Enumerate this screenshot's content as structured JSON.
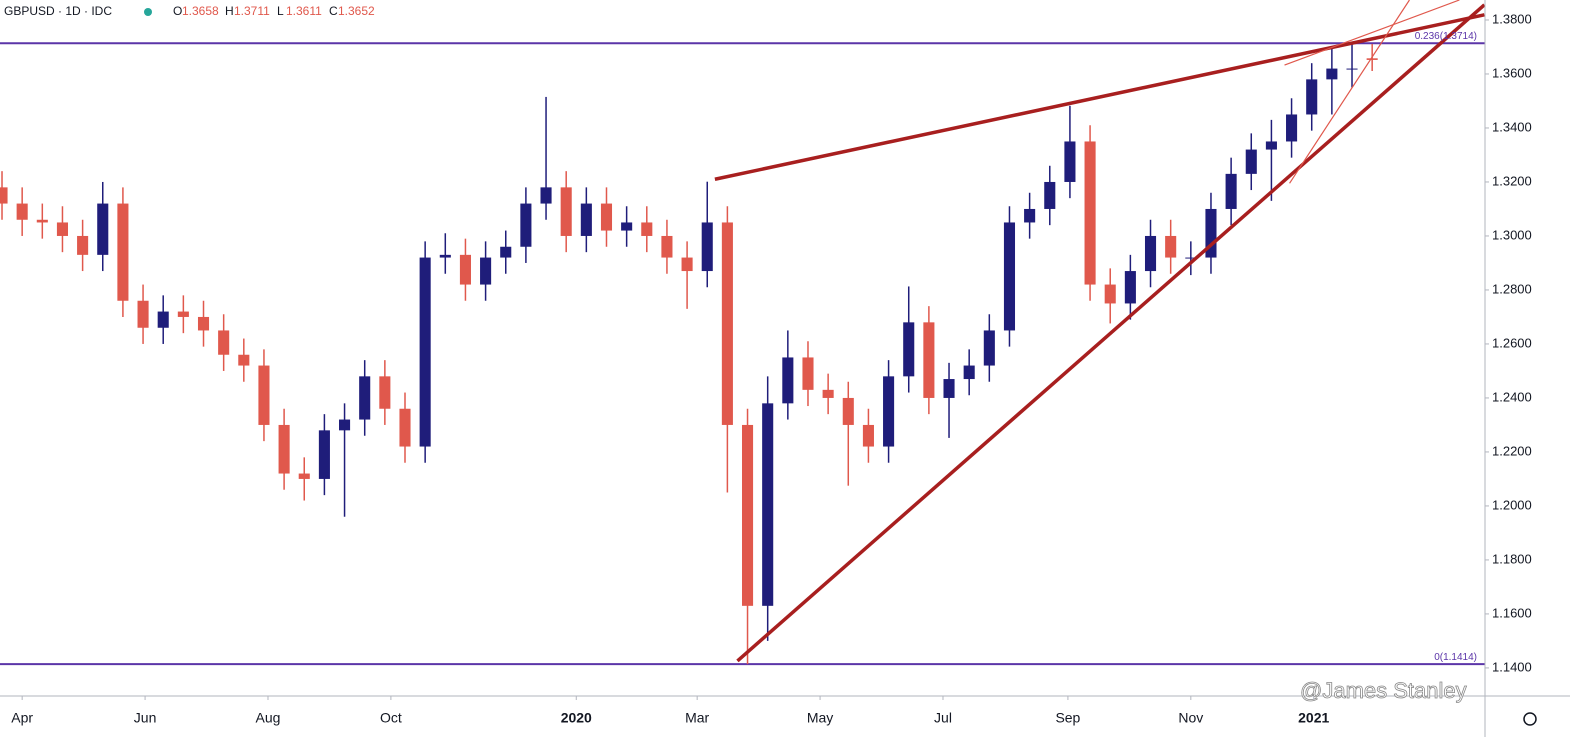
{
  "chart_data": {
    "type": "candlestick",
    "symbol": "GBPUSD · 1D · IDC",
    "ohlc_prefixes": [
      "O",
      "H",
      "L",
      "C"
    ],
    "up_color": "#1f1d7a",
    "down_color": "#e0584c",
    "x": [
      -10,
      0,
      10,
      20,
      30,
      40,
      50,
      60,
      70,
      80,
      90,
      100,
      110,
      120,
      130,
      140,
      150,
      160,
      170,
      180,
      190,
      200,
      210,
      220,
      230,
      240,
      250,
      260,
      270,
      280,
      290,
      300,
      310,
      320,
      330,
      340,
      350,
      360,
      370,
      380,
      390,
      400,
      410,
      420,
      430,
      440,
      450,
      460,
      470,
      480,
      490,
      500,
      510,
      520,
      530,
      540,
      550,
      560,
      570,
      580,
      590,
      600,
      610,
      620,
      630,
      640,
      650,
      660,
      670
    ],
    "open": [
      1.318,
      1.312,
      1.306,
      1.305,
      1.3,
      1.293,
      1.312,
      1.276,
      1.266,
      1.272,
      1.27,
      1.265,
      1.256,
      1.252,
      1.23,
      1.212,
      1.21,
      1.228,
      1.232,
      1.248,
      1.236,
      1.222,
      1.292,
      1.293,
      1.282,
      1.292,
      1.296,
      1.312,
      1.318,
      1.3,
      1.312,
      1.302,
      1.305,
      1.3,
      1.292,
      1.287,
      1.305,
      1.23,
      1.163,
      1.238,
      1.255,
      1.243,
      1.24,
      1.23,
      1.222,
      1.248,
      1.268,
      1.24,
      1.247,
      1.252,
      1.265,
      1.305,
      1.31,
      1.32,
      1.335,
      1.282,
      1.275,
      1.287,
      1.3,
      1.292,
      1.292,
      1.31,
      1.323,
      1.332,
      1.335,
      1.345,
      1.358,
      1.362,
      1.3658
    ],
    "high": [
      1.324,
      1.318,
      1.312,
      1.311,
      1.306,
      1.32,
      1.318,
      1.282,
      1.278,
      1.278,
      1.276,
      1.271,
      1.262,
      1.258,
      1.236,
      1.218,
      1.234,
      1.238,
      1.254,
      1.254,
      1.242,
      1.298,
      1.301,
      1.299,
      1.298,
      1.302,
      1.318,
      1.3515,
      1.324,
      1.318,
      1.318,
      1.311,
      1.311,
      1.306,
      1.298,
      1.3201,
      1.311,
      1.236,
      1.248,
      1.265,
      1.261,
      1.249,
      1.246,
      1.236,
      1.254,
      1.2813,
      1.274,
      1.253,
      1.258,
      1.271,
      1.311,
      1.316,
      1.326,
      1.3482,
      1.341,
      1.288,
      1.293,
      1.306,
      1.306,
      1.298,
      1.316,
      1.329,
      1.338,
      1.343,
      1.351,
      1.364,
      1.37,
      1.372,
      1.3711
    ],
    "low": [
      1.306,
      1.3,
      1.299,
      1.294,
      1.287,
      1.287,
      1.27,
      1.26,
      1.26,
      1.264,
      1.259,
      1.25,
      1.246,
      1.224,
      1.206,
      1.202,
      1.204,
      1.196,
      1.226,
      1.23,
      1.216,
      1.216,
      1.286,
      1.276,
      1.276,
      1.286,
      1.29,
      1.306,
      1.294,
      1.294,
      1.296,
      1.296,
      1.294,
      1.286,
      1.273,
      1.281,
      1.205,
      1.1414,
      1.15,
      1.232,
      1.237,
      1.234,
      1.2075,
      1.216,
      1.216,
      1.242,
      1.234,
      1.2252,
      1.241,
      1.246,
      1.259,
      1.299,
      1.304,
      1.314,
      1.276,
      1.2676,
      1.269,
      1.281,
      1.286,
      1.2855,
      1.286,
      1.304,
      1.317,
      1.313,
      1.329,
      1.339,
      1.345,
      1.355,
      1.3611
    ],
    "close": [
      1.312,
      1.306,
      1.305,
      1.3,
      1.293,
      1.312,
      1.276,
      1.266,
      1.272,
      1.27,
      1.265,
      1.256,
      1.252,
      1.23,
      1.212,
      1.21,
      1.228,
      1.232,
      1.248,
      1.236,
      1.222,
      1.292,
      1.293,
      1.282,
      1.292,
      1.296,
      1.312,
      1.318,
      1.3,
      1.312,
      1.302,
      1.305,
      1.3,
      1.292,
      1.287,
      1.305,
      1.23,
      1.163,
      1.238,
      1.255,
      1.243,
      1.24,
      1.23,
      1.222,
      1.248,
      1.268,
      1.24,
      1.247,
      1.252,
      1.265,
      1.305,
      1.31,
      1.32,
      1.335,
      1.282,
      1.275,
      1.287,
      1.3,
      1.292,
      1.292,
      1.31,
      1.323,
      1.332,
      1.335,
      1.345,
      1.358,
      1.362,
      1.362,
      1.3652
    ],
    "xlim": [
      -11,
      726
    ],
    "xticks": [
      {
        "value": 0,
        "label": "Apr"
      },
      {
        "value": 61,
        "label": "Jun"
      },
      {
        "value": 122,
        "label": "Aug"
      },
      {
        "value": 183,
        "label": "Oct"
      },
      {
        "value": 275,
        "label": "2020"
      },
      {
        "value": 335,
        "label": "Mar"
      },
      {
        "value": 396,
        "label": "May"
      },
      {
        "value": 457,
        "label": "Jul"
      },
      {
        "value": 519,
        "label": "Sep"
      },
      {
        "value": 580,
        "label": "Nov"
      },
      {
        "value": 641,
        "label": "2021"
      }
    ],
    "ylim": [
      1.1296,
      1.3874
    ],
    "yticks": [
      {
        "value": 1.14,
        "label": "1.1400"
      },
      {
        "value": 1.16,
        "label": "1.1600"
      },
      {
        "value": 1.18,
        "label": "1.1800"
      },
      {
        "value": 1.2,
        "label": "1.2000"
      },
      {
        "value": 1.22,
        "label": "1.2200"
      },
      {
        "value": 1.24,
        "label": "1.2400"
      },
      {
        "value": 1.26,
        "label": "1.2600"
      },
      {
        "value": 1.28,
        "label": "1.2800"
      },
      {
        "value": 1.3,
        "label": "1.3000"
      },
      {
        "value": 1.32,
        "label": "1.3200"
      },
      {
        "value": 1.34,
        "label": "1.3400"
      },
      {
        "value": 1.36,
        "label": "1.3600"
      },
      {
        "value": 1.38,
        "label": "1.3800"
      }
    ],
    "levels": [
      {
        "value": 1.3714,
        "label": "0.236(1.3714)",
        "color": "#5b35a8"
      },
      {
        "value": 1.1414,
        "label": "0(1.1414)",
        "color": "#5b35a8"
      }
    ],
    "trendlines": [
      {
        "x": [
          343.8,
          725.7
        ],
        "y": [
          1.321,
          1.3819
        ],
        "color": "#a81f1f",
        "style": "thick"
      },
      {
        "x": [
          355,
          725.7
        ],
        "y": [
          1.1426,
          1.3856
        ],
        "color": "#a81f1f",
        "style": "thick"
      },
      {
        "x": [
          626.5,
          713.3
        ],
        "y": [
          1.3633,
          1.3874
        ],
        "color": "#e0584c",
        "style": "thin"
      },
      {
        "x": [
          629,
          688.5
        ],
        "y": [
          1.3195,
          1.3874
        ],
        "color": "#e0584c",
        "style": "thin"
      }
    ],
    "watermark": "@James Stanley"
  }
}
